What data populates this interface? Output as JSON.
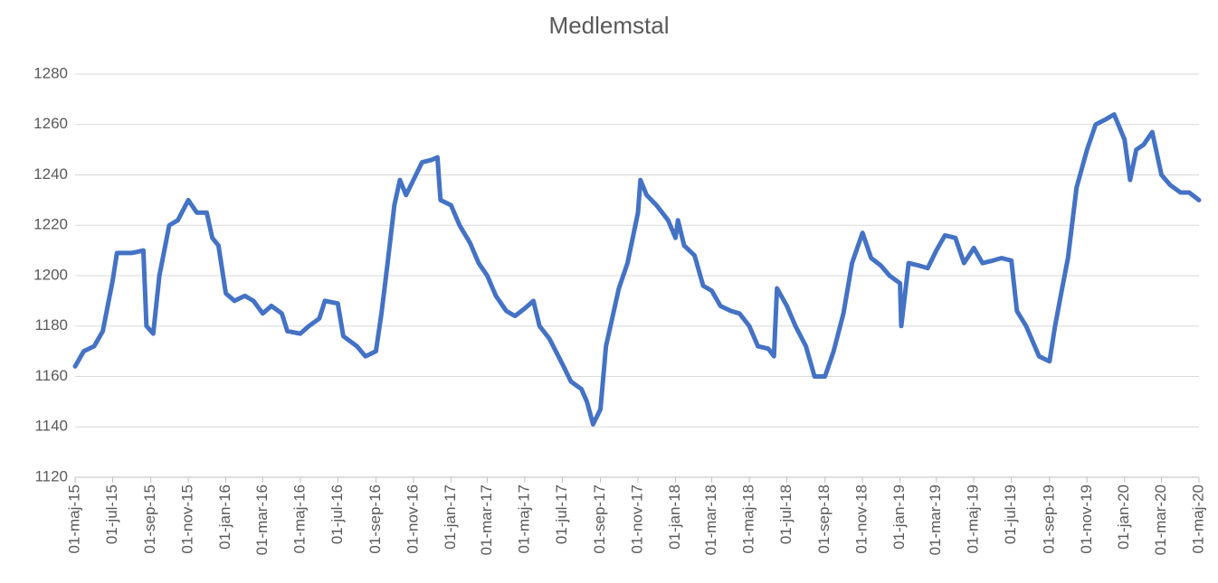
{
  "chart_data": {
    "type": "line",
    "title": "Medlemstal",
    "x": [
      "2015-05-01",
      "2015-05-15",
      "2015-06-01",
      "2015-06-15",
      "2015-07-01",
      "2015-07-08",
      "2015-08-01",
      "2015-08-20",
      "2015-08-25",
      "2015-09-05",
      "2015-09-15",
      "2015-10-01",
      "2015-10-15",
      "2015-11-01",
      "2015-11-15",
      "2015-12-01",
      "2015-12-10",
      "2015-12-20",
      "2016-01-01",
      "2016-01-15",
      "2016-02-01",
      "2016-02-15",
      "2016-03-01",
      "2016-03-15",
      "2016-04-01",
      "2016-04-10",
      "2016-05-01",
      "2016-05-15",
      "2016-06-01",
      "2016-06-10",
      "2016-07-01",
      "2016-07-10",
      "2016-08-01",
      "2016-08-15",
      "2016-09-01",
      "2016-09-10",
      "2016-09-20",
      "2016-10-01",
      "2016-10-10",
      "2016-10-20",
      "2016-11-01",
      "2016-11-15",
      "2016-12-01",
      "2016-12-10",
      "2016-12-15",
      "2017-01-01",
      "2017-01-15",
      "2017-02-01",
      "2017-02-15",
      "2017-03-01",
      "2017-03-15",
      "2017-04-01",
      "2017-04-15",
      "2017-05-01",
      "2017-05-15",
      "2017-05-25",
      "2017-06-10",
      "2017-07-01",
      "2017-07-15",
      "2017-08-01",
      "2017-08-10",
      "2017-08-20",
      "2017-09-01",
      "2017-09-10",
      "2017-10-01",
      "2017-10-15",
      "2017-11-01",
      "2017-11-05",
      "2017-11-15",
      "2017-12-01",
      "2017-12-20",
      "2018-01-01",
      "2018-01-05",
      "2018-01-15",
      "2018-02-01",
      "2018-02-15",
      "2018-03-01",
      "2018-03-15",
      "2018-04-01",
      "2018-04-15",
      "2018-05-01",
      "2018-05-15",
      "2018-06-01",
      "2018-06-10",
      "2018-06-15",
      "2018-07-01",
      "2018-07-15",
      "2018-08-01",
      "2018-08-15",
      "2018-09-01",
      "2018-09-15",
      "2018-10-01",
      "2018-10-15",
      "2018-11-01",
      "2018-11-15",
      "2018-12-01",
      "2018-12-15",
      "2019-01-01",
      "2019-01-03",
      "2019-01-15",
      "2019-02-01",
      "2019-02-15",
      "2019-03-01",
      "2019-03-15",
      "2019-04-01",
      "2019-04-15",
      "2019-05-01",
      "2019-05-15",
      "2019-06-01",
      "2019-06-15",
      "2019-07-01",
      "2019-07-10",
      "2019-07-25",
      "2019-08-15",
      "2019-09-01",
      "2019-09-10",
      "2019-09-20",
      "2019-10-01",
      "2019-10-15",
      "2019-11-01",
      "2019-11-15",
      "2019-12-01",
      "2019-12-15",
      "2020-01-01",
      "2020-01-10",
      "2020-01-20",
      "2020-02-01",
      "2020-02-15",
      "2020-03-01",
      "2020-03-15",
      "2020-04-01",
      "2020-04-15",
      "2020-05-01"
    ],
    "series": [
      {
        "name": "Medlemstal",
        "color": "#4472c4",
        "values": [
          1164,
          1170,
          1172,
          1178,
          1198,
          1209,
          1209,
          1210,
          1180,
          1177,
          1200,
          1220,
          1222,
          1230,
          1225,
          1225,
          1215,
          1212,
          1193,
          1190,
          1192,
          1190,
          1185,
          1188,
          1185,
          1178,
          1177,
          1180,
          1183,
          1190,
          1189,
          1176,
          1172,
          1168,
          1170,
          1185,
          1205,
          1228,
          1238,
          1232,
          1238,
          1245,
          1246,
          1247,
          1230,
          1228,
          1220,
          1213,
          1205,
          1200,
          1192,
          1186,
          1184,
          1187,
          1190,
          1180,
          1175,
          1165,
          1158,
          1155,
          1150,
          1141,
          1147,
          1172,
          1195,
          1205,
          1225,
          1238,
          1232,
          1228,
          1222,
          1215,
          1222,
          1212,
          1208,
          1196,
          1194,
          1188,
          1186,
          1185,
          1180,
          1172,
          1171,
          1168,
          1195,
          1188,
          1180,
          1172,
          1160,
          1160,
          1170,
          1185,
          1205,
          1217,
          1207,
          1204,
          1200,
          1197,
          1180,
          1205,
          1204,
          1203,
          1210,
          1216,
          1215,
          1205,
          1211,
          1205,
          1206,
          1207,
          1206,
          1186,
          1180,
          1168,
          1166,
          1180,
          1193,
          1207,
          1235,
          1250,
          1260,
          1262,
          1264,
          1254,
          1238,
          1250,
          1252,
          1257,
          1240,
          1236,
          1233,
          1233,
          1230
        ]
      }
    ],
    "xlim": [
      "2015-05-01",
      "2020-05-01"
    ],
    "xticks": [
      {
        "value": "2015-05-01",
        "label": "01-maj-15"
      },
      {
        "value": "2015-07-01",
        "label": "01-jul-15"
      },
      {
        "value": "2015-09-01",
        "label": "01-sep-15"
      },
      {
        "value": "2015-11-01",
        "label": "01-nov-15"
      },
      {
        "value": "2016-01-01",
        "label": "01-jan-16"
      },
      {
        "value": "2016-03-01",
        "label": "01-mar-16"
      },
      {
        "value": "2016-05-01",
        "label": "01-maj-16"
      },
      {
        "value": "2016-07-01",
        "label": "01-jul-16"
      },
      {
        "value": "2016-09-01",
        "label": "01-sep-16"
      },
      {
        "value": "2016-11-01",
        "label": "01-nov-16"
      },
      {
        "value": "2017-01-01",
        "label": "01-jan-17"
      },
      {
        "value": "2017-03-01",
        "label": "01-mar-17"
      },
      {
        "value": "2017-05-01",
        "label": "01-maj-17"
      },
      {
        "value": "2017-07-01",
        "label": "01-jul-17"
      },
      {
        "value": "2017-09-01",
        "label": "01-sep-17"
      },
      {
        "value": "2017-11-01",
        "label": "01-nov-17"
      },
      {
        "value": "2018-01-01",
        "label": "01-jan-18"
      },
      {
        "value": "2018-03-01",
        "label": "01-mar-18"
      },
      {
        "value": "2018-05-01",
        "label": "01-maj-18"
      },
      {
        "value": "2018-07-01",
        "label": "01-jul-18"
      },
      {
        "value": "2018-09-01",
        "label": "01-sep-18"
      },
      {
        "value": "2018-11-01",
        "label": "01-nov-18"
      },
      {
        "value": "2019-01-01",
        "label": "01-jan-19"
      },
      {
        "value": "2019-03-01",
        "label": "01-mar-19"
      },
      {
        "value": "2019-05-01",
        "label": "01-maj-19"
      },
      {
        "value": "2019-07-01",
        "label": "01-jul-19"
      },
      {
        "value": "2019-09-01",
        "label": "01-sep-19"
      },
      {
        "value": "2019-11-01",
        "label": "01-nov-19"
      },
      {
        "value": "2020-01-01",
        "label": "01-jan-20"
      },
      {
        "value": "2020-03-01",
        "label": "01-mar-20"
      },
      {
        "value": "2020-05-01",
        "label": "01-maj-20"
      }
    ],
    "ylim": [
      1120,
      1280
    ],
    "yticks": [
      1120,
      1140,
      1160,
      1180,
      1200,
      1220,
      1240,
      1260,
      1280
    ],
    "grid": true
  }
}
